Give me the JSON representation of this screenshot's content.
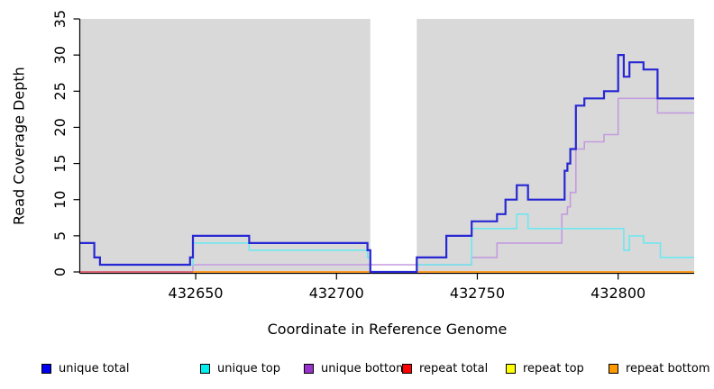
{
  "chart_data": {
    "type": "line",
    "subtype": "step-coverage",
    "title": "",
    "xlabel": "Coordinate in Reference Genome",
    "ylabel": "Read Coverage Depth",
    "xlim": [
      432609,
      432827
    ],
    "ylim": [
      0,
      35
    ],
    "x_ticks": [
      432650,
      432700,
      432750,
      432800
    ],
    "y_ticks": [
      0,
      5,
      10,
      15,
      20,
      25,
      30,
      35
    ],
    "grid": false,
    "plot_bg_color": "#d9d9d9",
    "gap_band": {
      "start": 432712,
      "end": 432728.5,
      "color": "#ffffff"
    },
    "axis_color": "#000000",
    "series": [
      {
        "name": "repeat top",
        "line_color": "#ffff00",
        "legend_color": "#ffff00",
        "width": 1.5,
        "steps": [
          [
            432609,
            0
          ],
          [
            432827,
            0
          ]
        ]
      },
      {
        "name": "unique bottom",
        "line_color": "#c39bdf",
        "legend_color": "#9933cc",
        "width": 1.6,
        "steps": [
          [
            432609,
            0
          ],
          [
            432649,
            1
          ],
          [
            432748,
            2
          ],
          [
            432757,
            4
          ],
          [
            432780,
            8
          ],
          [
            432782,
            9
          ],
          [
            432783,
            11
          ],
          [
            432785,
            17
          ],
          [
            432788,
            18
          ],
          [
            432795,
            19
          ],
          [
            432800,
            24
          ],
          [
            432814,
            22
          ],
          [
            432827,
            22
          ]
        ]
      },
      {
        "name": "repeat total",
        "line_color": "#de4a6b",
        "legend_color": "#ff0000",
        "width": 1.6,
        "steps": [
          [
            432609,
            0
          ],
          [
            432827,
            0
          ]
        ]
      },
      {
        "name": "repeat bottom",
        "line_color": "#ff9c1c",
        "legend_color": "#ff9900",
        "width": 1.8,
        "steps": [
          [
            432649,
            0
          ],
          [
            432827,
            0
          ]
        ]
      },
      {
        "name": "unique top",
        "line_color": "#6fe7ef",
        "legend_color": "#00eeee",
        "width": 1.6,
        "steps": [
          [
            432609,
            4
          ],
          [
            432614,
            2
          ],
          [
            432616,
            1
          ],
          [
            432649,
            4
          ],
          [
            432669,
            3
          ],
          [
            432711,
            2
          ],
          [
            432712,
            0
          ],
          [
            432728.5,
            1
          ],
          [
            432748,
            6
          ],
          [
            432764,
            8
          ],
          [
            432768,
            6
          ],
          [
            432802,
            3
          ],
          [
            432804,
            5
          ],
          [
            432809,
            4
          ],
          [
            432815,
            2
          ],
          [
            432827,
            2
          ]
        ]
      },
      {
        "name": "unique total",
        "line_color": "#2727d4",
        "legend_color": "#0000ee",
        "width": 2.2,
        "steps": [
          [
            432609,
            4
          ],
          [
            432614,
            2
          ],
          [
            432616,
            1
          ],
          [
            432648,
            2
          ],
          [
            432649,
            5
          ],
          [
            432669,
            4
          ],
          [
            432711,
            3
          ],
          [
            432712,
            0
          ],
          [
            432728.5,
            2
          ],
          [
            432739,
            5
          ],
          [
            432748,
            7
          ],
          [
            432757,
            8
          ],
          [
            432760,
            10
          ],
          [
            432764,
            12
          ],
          [
            432768,
            10
          ],
          [
            432781,
            14
          ],
          [
            432782,
            15
          ],
          [
            432783,
            17
          ],
          [
            432785,
            23
          ],
          [
            432788,
            24
          ],
          [
            432795,
            25
          ],
          [
            432800,
            30
          ],
          [
            432802,
            27
          ],
          [
            432804,
            29
          ],
          [
            432809,
            28
          ],
          [
            432814,
            24
          ],
          [
            432827,
            24
          ]
        ]
      }
    ],
    "legend": [
      {
        "label": "unique total",
        "color": "#0000ee"
      },
      {
        "label": "unique top",
        "color": "#00eeee"
      },
      {
        "label": "unique bottom",
        "color": "#9933cc"
      },
      {
        "label": "repeat total",
        "color": "#ff0000"
      },
      {
        "label": "repeat top",
        "color": "#ffff00"
      },
      {
        "label": "repeat bottom",
        "color": "#ff9900"
      }
    ],
    "legend_position": "bottom"
  }
}
